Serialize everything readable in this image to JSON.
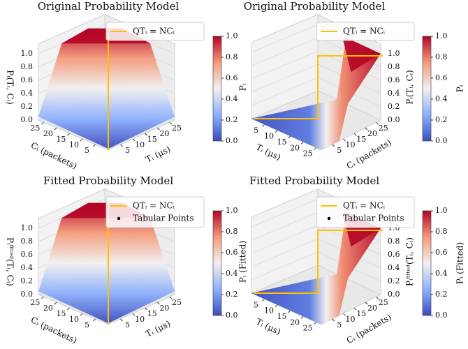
{
  "chart_data": [
    {
      "type": "surface3d",
      "title": "Original Probability Model",
      "xlabel": "Tᵢ (μs)",
      "ylabel": "Cᵢ (packets)",
      "zlabel": "Pᵢ(Tᵢ, Cᵢ)",
      "xlim": [
        0,
        27
      ],
      "xticks": [
        5,
        10,
        15,
        20,
        25
      ],
      "ylim": [
        0,
        27
      ],
      "yticks": [
        5,
        10,
        15,
        20,
        25
      ],
      "zlim": [
        0,
        1
      ],
      "zticks": [
        {
          "value": 0,
          "label": "0.0"
        },
        {
          "value": 0.2,
          "label": "0.2"
        },
        {
          "value": 0.4,
          "label": "0.4"
        },
        {
          "value": 0.6,
          "label": "0.6"
        },
        {
          "value": 0.8,
          "label": "0.8"
        },
        {
          "value": 1,
          "label": "1.0"
        }
      ],
      "colormap": "coolwarm",
      "colorbar": {
        "lim": [
          0,
          1
        ],
        "ticks": [
          {
            "value": 0,
            "label": "0.0"
          },
          {
            "value": 0.2,
            "label": "0.2"
          },
          {
            "value": 0.4,
            "label": "0.4"
          },
          {
            "value": 0.6,
            "label": "0.6"
          },
          {
            "value": 0.8,
            "label": "0.8"
          },
          {
            "value": 1,
            "label": "1.0"
          }
        ]
      },
      "series": [
        {
          "name": "QTᵢ = NCᵢ",
          "color": "#ffc000"
        }
      ]
    },
    {
      "type": "surface3d",
      "title": "Original Probability Model",
      "xlabel": "Tᵢ (μs)",
      "ylabel": "Cᵢ (packets)",
      "zlabel": "Pᵢ(Tᵢ, Cᵢ)",
      "side_label": "Pᵢ",
      "xlim": [
        0,
        27
      ],
      "xticks": [
        5,
        10,
        15,
        20,
        25
      ],
      "ylim": [
        0,
        27
      ],
      "yticks": [
        5,
        10,
        15,
        20,
        25
      ],
      "zlim": [
        0,
        1
      ],
      "zticks": [
        {
          "value": 0,
          "label": "0.0"
        },
        {
          "value": 0.2,
          "label": "0.2"
        },
        {
          "value": 0.4,
          "label": "0.4"
        },
        {
          "value": 0.6,
          "label": "0.6"
        },
        {
          "value": 0.8,
          "label": "0.8"
        },
        {
          "value": 1,
          "label": "1.0"
        }
      ],
      "colormap": "coolwarm",
      "colorbar": {
        "label": "Pᵢ",
        "lim": [
          0,
          1
        ],
        "ticks": [
          {
            "value": 0,
            "label": "0.0"
          },
          {
            "value": 0.2,
            "label": "0.2"
          },
          {
            "value": 0.4,
            "label": "0.4"
          },
          {
            "value": 0.6,
            "label": "0.6"
          },
          {
            "value": 0.8,
            "label": "0.8"
          },
          {
            "value": 1,
            "label": "1.0"
          }
        ]
      },
      "series": [
        {
          "name": "QTᵢ = NCᵢ",
          "color": "#ffc000"
        }
      ]
    },
    {
      "type": "surface3d",
      "title": "Fitted Probability Model",
      "xlabel": "Tᵢ (μs)",
      "ylabel": "Cᵢ (packets)",
      "zlabel": "Pᵢᶠⁱᵗᵗᵉᵈ(Tᵢ, Cᵢ)",
      "xlim": [
        0,
        27
      ],
      "xticks": [
        5,
        10,
        15,
        20,
        25
      ],
      "ylim": [
        0,
        27
      ],
      "yticks": [
        5,
        10,
        15,
        20,
        25
      ],
      "zlim": [
        0,
        1
      ],
      "zticks": [
        {
          "value": 0,
          "label": "0.0"
        },
        {
          "value": 0.2,
          "label": "0.2"
        },
        {
          "value": 0.4,
          "label": "0.4"
        },
        {
          "value": 0.6,
          "label": "0.6"
        },
        {
          "value": 0.8,
          "label": "0.8"
        },
        {
          "value": 1,
          "label": "1.0"
        }
      ],
      "colormap": "coolwarm",
      "colorbar": {
        "lim": [
          0,
          1
        ],
        "ticks": [
          {
            "value": 0,
            "label": "0.0"
          },
          {
            "value": 0.2,
            "label": "0.2"
          },
          {
            "value": 0.4,
            "label": "0.4"
          },
          {
            "value": 0.6,
            "label": "0.6"
          },
          {
            "value": 0.8,
            "label": "0.8"
          },
          {
            "value": 1,
            "label": "1.0"
          }
        ]
      },
      "series": [
        {
          "name": "QTᵢ = NCᵢ",
          "color": "#ffc000"
        },
        {
          "name": "Tabular Points",
          "color": "#000000"
        }
      ]
    },
    {
      "type": "surface3d",
      "title": "Fitted Probability Model",
      "xlabel": "Tᵢ (μs)",
      "ylabel": "Cᵢ (packets)",
      "zlabel": "Pᵢᶠⁱᵗᵗᵉᵈ(Tᵢ, Cᵢ)",
      "side_label": "Pᵢ (Fitted)",
      "xlim": [
        0,
        27
      ],
      "xticks": [
        5,
        10,
        15,
        20,
        25
      ],
      "ylim": [
        0,
        27
      ],
      "yticks": [
        5,
        10,
        15,
        20,
        25
      ],
      "zlim": [
        0,
        1
      ],
      "zticks": [
        {
          "value": 0,
          "label": "0.0"
        },
        {
          "value": 0.2,
          "label": "0.2"
        },
        {
          "value": 0.4,
          "label": "0.4"
        },
        {
          "value": 0.6,
          "label": "0.6"
        },
        {
          "value": 0.8,
          "label": "0.8"
        },
        {
          "value": 1,
          "label": "1.0"
        }
      ],
      "colormap": "coolwarm",
      "colorbar": {
        "label": "Pᵢ (Fitted)",
        "lim": [
          0,
          1
        ],
        "ticks": [
          {
            "value": 0,
            "label": "0.0"
          },
          {
            "value": 0.2,
            "label": "0.2"
          },
          {
            "value": 0.4,
            "label": "0.4"
          },
          {
            "value": 0.6,
            "label": "0.6"
          },
          {
            "value": 0.8,
            "label": "0.8"
          },
          {
            "value": 1,
            "label": "1.0"
          }
        ]
      },
      "series": [
        {
          "name": "QTᵢ = NCᵢ",
          "color": "#ffc000"
        },
        {
          "name": "Tabular Points",
          "color": "#000000"
        }
      ]
    }
  ]
}
